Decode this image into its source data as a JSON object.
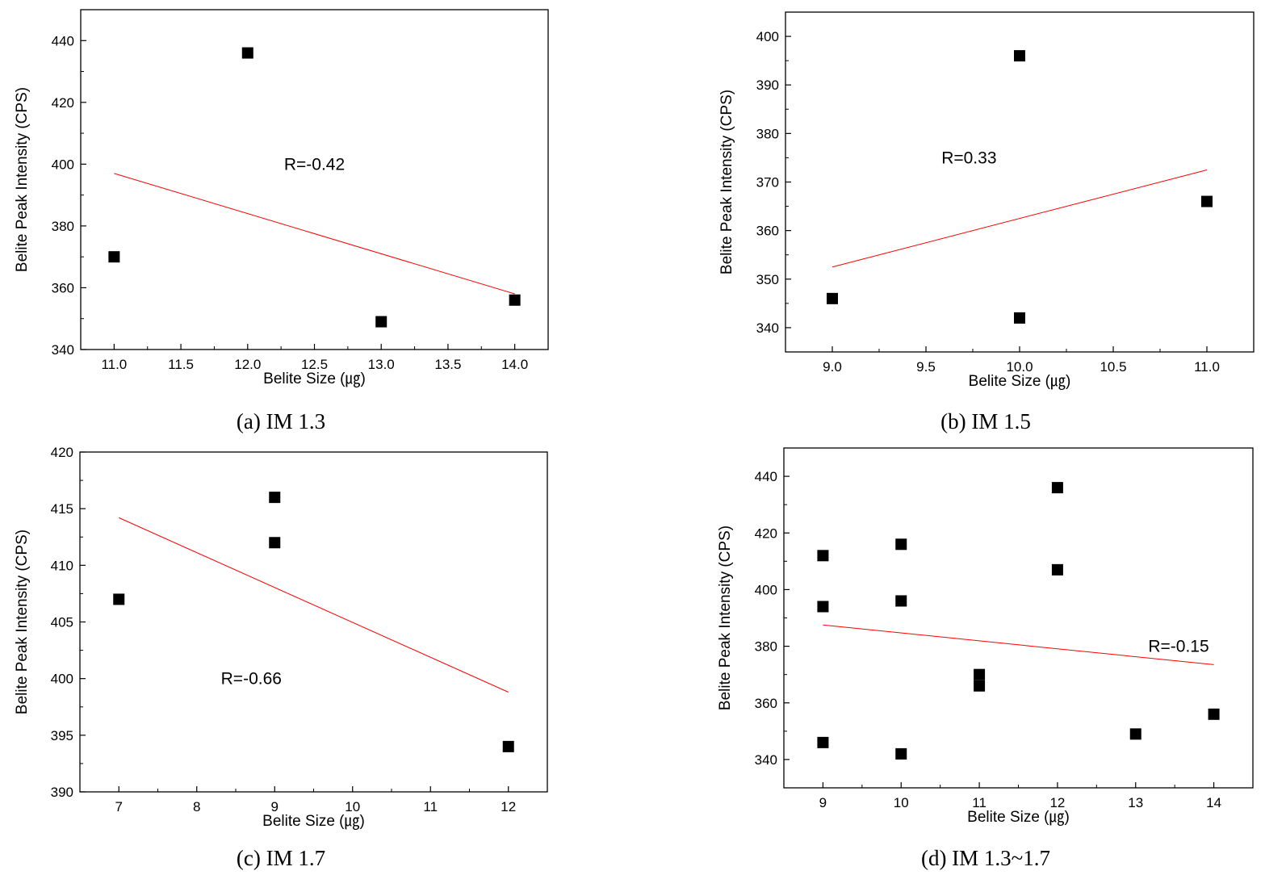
{
  "figure": {
    "marker_color": "#000000",
    "fit_line_color": "#ff0000",
    "axis_color": "#000000"
  },
  "chart_data": [
    {
      "type": "scatter",
      "id": "a",
      "caption": "(a) IM 1.3",
      "xlabel": "Belite Size (㎍)",
      "ylabel": "Belite Peak Intensity (CPS)",
      "xlim": [
        10.75,
        14.25
      ],
      "ylim": [
        340,
        450
      ],
      "xticks": [
        11.0,
        11.5,
        12.0,
        12.5,
        13.0,
        13.5,
        14.0
      ],
      "xtick_labels": [
        "11.0",
        "11.5",
        "12.0",
        "12.5",
        "13.0",
        "13.5",
        "14.0"
      ],
      "yticks": [
        340,
        360,
        380,
        400,
        420,
        440
      ],
      "ytick_labels": [
        "340",
        "360",
        "380",
        "400",
        "420",
        "440"
      ],
      "points": [
        {
          "x": 11,
          "y": 370
        },
        {
          "x": 12,
          "y": 436
        },
        {
          "x": 13,
          "y": 349
        },
        {
          "x": 14,
          "y": 356
        }
      ],
      "fit_line": {
        "x": [
          11,
          14
        ],
        "y": [
          397,
          358
        ]
      },
      "annotation": {
        "text": "R=-0.42",
        "x": 12.5,
        "y": 400
      }
    },
    {
      "type": "scatter",
      "id": "b",
      "caption": "(b) IM 1.5",
      "xlabel": "Belite Size (㎍)",
      "ylabel": "Belite Peak Intensity (CPS)",
      "xlim": [
        8.75,
        11.25
      ],
      "ylim": [
        335,
        405
      ],
      "xticks": [
        9.0,
        9.5,
        10.0,
        10.5,
        11.0
      ],
      "xtick_labels": [
        "9.0",
        "9.5",
        "10.0",
        "10.5",
        "11.0"
      ],
      "yticks": [
        340,
        350,
        360,
        370,
        380,
        390,
        400
      ],
      "ytick_labels": [
        "340",
        "350",
        "360",
        "370",
        "380",
        "390",
        "400"
      ],
      "points": [
        {
          "x": 9,
          "y": 346
        },
        {
          "x": 10,
          "y": 396
        },
        {
          "x": 10,
          "y": 342
        },
        {
          "x": 11,
          "y": 366
        }
      ],
      "fit_line": {
        "x": [
          9,
          11
        ],
        "y": [
          352.5,
          372.5
        ]
      },
      "annotation": {
        "text": "R=0.33",
        "x": 9.73,
        "y": 375
      }
    },
    {
      "type": "scatter",
      "id": "c",
      "caption": "(c) IM 1.7",
      "xlabel": "Belite Size (㎍)",
      "ylabel": "Belite Peak Intensity (CPS)",
      "xlim": [
        6.5,
        12.5
      ],
      "ylim": [
        390,
        420
      ],
      "xticks": [
        7,
        8,
        9,
        10,
        11,
        12
      ],
      "xtick_labels": [
        "7",
        "8",
        "9",
        "10",
        "11",
        "12"
      ],
      "yticks": [
        390,
        395,
        400,
        405,
        410,
        415,
        420
      ],
      "ytick_labels": [
        "390",
        "395",
        "400",
        "405",
        "410",
        "415",
        "420"
      ],
      "points": [
        {
          "x": 7,
          "y": 407
        },
        {
          "x": 9,
          "y": 416
        },
        {
          "x": 9,
          "y": 412
        },
        {
          "x": 12,
          "y": 394
        }
      ],
      "fit_line": {
        "x": [
          7,
          12
        ],
        "y": [
          414.2,
          398.8
        ]
      },
      "annotation": {
        "text": "R=-0.66",
        "x": 8.7,
        "y": 400
      }
    },
    {
      "type": "scatter",
      "id": "d",
      "caption": "(d) IM 1.3~1.7",
      "xlabel": "Belite Size (㎍)",
      "ylabel": "Belite Peak Intensity (CPS)",
      "xlim": [
        8.5,
        14.5
      ],
      "ylim": [
        330,
        450
      ],
      "xticks": [
        9,
        10,
        11,
        12,
        13,
        14
      ],
      "xtick_labels": [
        "9",
        "10",
        "11",
        "12",
        "13",
        "14"
      ],
      "yticks": [
        340,
        360,
        380,
        400,
        420,
        440
      ],
      "ytick_labels": [
        "340",
        "360",
        "380",
        "400",
        "420",
        "440"
      ],
      "points": [
        {
          "x": 9,
          "y": 412
        },
        {
          "x": 9,
          "y": 394
        },
        {
          "x": 9,
          "y": 346
        },
        {
          "x": 10,
          "y": 416
        },
        {
          "x": 10,
          "y": 396
        },
        {
          "x": 10,
          "y": 342
        },
        {
          "x": 11,
          "y": 370
        },
        {
          "x": 11,
          "y": 366
        },
        {
          "x": 12,
          "y": 436
        },
        {
          "x": 12,
          "y": 407
        },
        {
          "x": 13,
          "y": 349
        },
        {
          "x": 14,
          "y": 356
        }
      ],
      "fit_line": {
        "x": [
          9,
          14
        ],
        "y": [
          387.5,
          373.5
        ]
      },
      "annotation": {
        "text": "R=-0.15",
        "x": 13.55,
        "y": 380
      }
    }
  ]
}
